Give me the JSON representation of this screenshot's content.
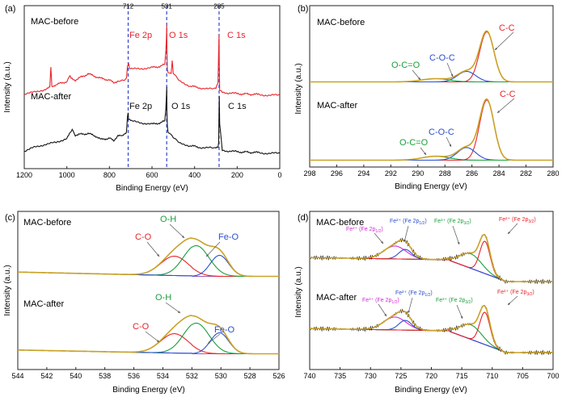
{
  "chart_data": [
    {
      "panel": "(a)",
      "type": "line",
      "xlabel": "Binding Energy (eV)",
      "ylabel": "Intensity (a.u.)",
      "xlim": [
        1200,
        0
      ],
      "x_ticks": [
        "1200",
        "1000",
        "800",
        "600",
        "400",
        "200",
        "0"
      ],
      "x_tick_values": [
        1200,
        1000,
        800,
        600,
        400,
        200,
        0
      ],
      "reference_lines": [
        {
          "x": 712,
          "label": "712"
        },
        {
          "x": 531,
          "label": "531"
        },
        {
          "x": 285,
          "label": "285"
        }
      ],
      "series": [
        {
          "name": "MAC-before",
          "color": "#e8242a",
          "offset": 62,
          "x": [
            1200,
            1150,
            1100,
            1080,
            1075,
            1070,
            1060,
            1000,
            985,
            980,
            960,
            900,
            880,
            860,
            840,
            800,
            780,
            760,
            730,
            720,
            715,
            712,
            710,
            705,
            700,
            650,
            600,
            560,
            540,
            535,
            532,
            531,
            530,
            528,
            525,
            510,
            505,
            500,
            470,
            420,
            380,
            330,
            300,
            290,
            287,
            285,
            284,
            282,
            270,
            200,
            100,
            50,
            0
          ],
          "y": [
            4,
            6,
            10,
            12,
            40,
            14,
            15,
            20,
            28,
            24,
            22,
            30,
            28,
            26,
            24,
            22,
            18,
            21,
            22,
            25,
            40,
            42,
            44,
            38,
            36,
            37,
            38,
            40,
            42,
            60,
            80,
            95,
            62,
            36,
            32,
            30,
            48,
            30,
            20,
            14,
            12,
            10,
            10,
            18,
            60,
            80,
            45,
            8,
            6,
            4,
            3,
            2,
            2
          ]
        },
        {
          "name": "MAC-after",
          "color": "#111111",
          "offset": 0,
          "x": [
            1200,
            1150,
            1100,
            1050,
            1000,
            980,
            975,
            960,
            900,
            880,
            860,
            840,
            800,
            780,
            760,
            740,
            720,
            715,
            712,
            710,
            700,
            650,
            600,
            560,
            540,
            535,
            532,
            531,
            530,
            528,
            525,
            510,
            500,
            470,
            420,
            380,
            330,
            300,
            290,
            287,
            285,
            284,
            282,
            270,
            200,
            100,
            50,
            0
          ],
          "y": [
            5,
            10,
            14,
            16,
            22,
            30,
            34,
            26,
            28,
            26,
            24,
            20,
            22,
            18,
            26,
            24,
            30,
            50,
            56,
            46,
            44,
            42,
            40,
            42,
            44,
            60,
            80,
            90,
            56,
            38,
            30,
            26,
            22,
            15,
            12,
            10,
            9,
            8,
            10,
            16,
            55,
            78,
            40,
            6,
            4,
            3,
            2,
            2
          ]
        }
      ],
      "annotations": [
        {
          "group": "MAC-before",
          "labels": [
            "Fe 2p",
            "O 1s",
            "C 1s"
          ],
          "color": "#e8242a"
        },
        {
          "group": "MAC-after",
          "labels": [
            "Fe 2p",
            "O 1s",
            "C 1s"
          ],
          "color": "#111111"
        }
      ]
    },
    {
      "panel": "(b)",
      "type": "line",
      "xlabel": "Binding Energy (eV)",
      "ylabel": "Intensity (a.u.)",
      "xlim": [
        298,
        280
      ],
      "x_ticks": [
        "298",
        "296",
        "294",
        "292",
        "290",
        "288",
        "286",
        "284",
        "282",
        "280"
      ],
      "x_tick_values": [
        298,
        296,
        294,
        292,
        290,
        288,
        286,
        284,
        282,
        280
      ],
      "groups": [
        "MAC-before",
        "MAC-after"
      ],
      "components": [
        {
          "name": "C-C",
          "center": 284.9,
          "color": "#e8242a"
        },
        {
          "name": "C-O-C",
          "center": 286.4,
          "color": "#2a4fcf"
        },
        {
          "name": "O-C=O",
          "center": 288.7,
          "color": "#1a9e3a"
        }
      ]
    },
    {
      "panel": "(c)",
      "type": "line",
      "xlabel": "Binding Energy (eV)",
      "ylabel": "Intensity (a.u.)",
      "xlim": [
        544,
        526
      ],
      "x_ticks": [
        "544",
        "542",
        "540",
        "538",
        "536",
        "534",
        "532",
        "530",
        "528",
        "526"
      ],
      "x_tick_values": [
        544,
        542,
        540,
        538,
        536,
        534,
        532,
        530,
        528,
        526
      ],
      "groups": [
        "MAC-before",
        "MAC-after"
      ],
      "components": [
        {
          "name": "C-O",
          "center": 533.2,
          "color": "#e8242a"
        },
        {
          "name": "O-H",
          "center": 531.7,
          "color": "#1a9e3a"
        },
        {
          "name": "Fe-O",
          "center": 530.1,
          "color": "#2a4fcf"
        }
      ]
    },
    {
      "panel": "(d)",
      "type": "line",
      "xlabel": "Binding Energy (eV)",
      "ylabel": "Intensity (a.u.)",
      "xlim": [
        740,
        700
      ],
      "x_ticks": [
        "740",
        "735",
        "730",
        "725",
        "720",
        "715",
        "710",
        "705",
        "700"
      ],
      "x_tick_values": [
        740,
        735,
        730,
        725,
        720,
        715,
        710,
        705,
        700
      ],
      "groups": [
        "MAC-before",
        "MAC-after"
      ],
      "components": [
        {
          "name": "Fe³⁺ (Fe 2p1/2)",
          "center": 726.0,
          "color": "#d12ad1"
        },
        {
          "name": "Fe²⁺ (Fe 2p1/2)",
          "center": 724.3,
          "color": "#2a4fcf"
        },
        {
          "name": "Fe³⁺ (Fe 2p3/2)",
          "center": 713.5,
          "color": "#1a9e3a"
        },
        {
          "name": "Fe²⁺ (Fe 2p3/2)",
          "center": 711.2,
          "color": "#e8242a"
        }
      ]
    }
  ],
  "colors": {
    "envelope": "#c9a227",
    "baseline": "#9b59b6",
    "axis": "#222222",
    "marker_line": "#3344cc",
    "raw": "#1a1a1a"
  },
  "panels": {
    "a": {
      "tag": "(a)",
      "before": "MAC-before",
      "after": "MAC-after",
      "ylabel": "Intensity (a.u.)",
      "xlabel": "Binding Energy (eV)",
      "lines": [
        "712",
        "531",
        "285"
      ],
      "before_labels": [
        "Fe 2p",
        "O 1s",
        "C 1s"
      ],
      "after_labels": [
        "Fe 2p",
        "O 1s",
        "C 1s"
      ]
    },
    "b": {
      "tag": "(b)",
      "before": "MAC-before",
      "after": "MAC-after",
      "ylabel": "Intensity (a.u.)",
      "xlabel": "Binding Energy (eV)",
      "cc": "C-C",
      "coc": "C-O-C",
      "oco": "O-C=O"
    },
    "c": {
      "tag": "(c)",
      "before": "MAC-before",
      "after": "MAC-after",
      "ylabel": "Intensity (a.u.)",
      "xlabel": "Binding Energy (eV)",
      "co": "C-O",
      "oh": "O-H",
      "feo": "Fe-O"
    },
    "d": {
      "tag": "(d)",
      "before": "MAC-before",
      "after": "MAC-after",
      "ylabel": "Intensity (a.u.)",
      "xlabel": "Binding Energy (eV)",
      "fe3_12": "Fe³⁺ (Fe 2p",
      "fe3_12_sub": "1/2",
      "fe2_12": "Fe²⁺ (Fe 2p",
      "fe2_12_sub": "1/2",
      "fe3_32": "Fe³⁺ (Fe 2p",
      "fe3_32_sub": "3/2",
      "fe2_32": "Fe²⁺ (Fe 2p",
      "fe2_32_sub": "3/2",
      "close": ")"
    }
  }
}
